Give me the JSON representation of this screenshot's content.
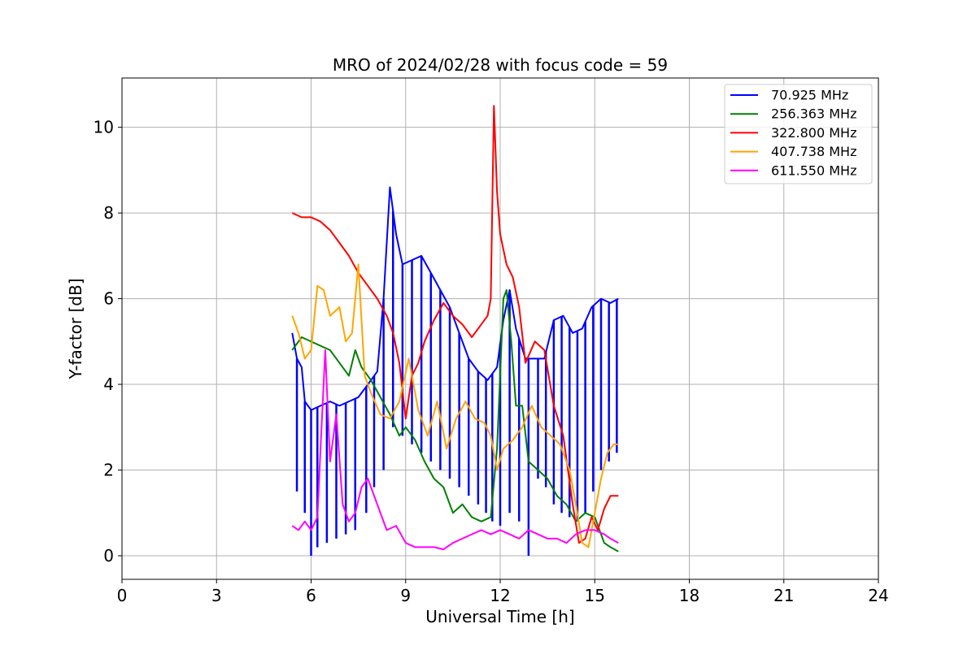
{
  "chart_data": {
    "type": "line",
    "title": "MRO of 2024/02/28 with focus code = 59",
    "xlabel": "Universal Time [h]",
    "ylabel": "Y-factor [dB]",
    "xlim": [
      0,
      24
    ],
    "ylim": [
      -0.55,
      11.15
    ],
    "xticks": [
      0,
      3,
      6,
      9,
      12,
      15,
      18,
      21,
      24
    ],
    "yticks": [
      0,
      2,
      4,
      6,
      8,
      10
    ],
    "grid": true,
    "legend_position": "top-right",
    "series": [
      {
        "name": "  70.925 MHz",
        "color": "#0000ff",
        "x": [
          5.4,
          5.55,
          5.7,
          5.8,
          6.0,
          6.3,
          6.6,
          6.9,
          7.2,
          7.5,
          7.8,
          8.1,
          8.3,
          8.5,
          8.7,
          8.9,
          9.2,
          9.5,
          9.8,
          10.1,
          10.4,
          10.7,
          11.0,
          11.3,
          11.6,
          11.9,
          12.1,
          12.3,
          12.5,
          12.8,
          13.1,
          13.4,
          13.7,
          14.0,
          14.3,
          14.6,
          14.9,
          15.2,
          15.5,
          15.75
        ],
        "y": [
          5.2,
          4.6,
          4.4,
          3.6,
          3.4,
          3.5,
          3.6,
          3.5,
          3.6,
          3.7,
          4.0,
          4.3,
          6.0,
          8.6,
          7.5,
          6.8,
          6.9,
          7.0,
          6.6,
          6.2,
          5.8,
          5.2,
          4.6,
          4.3,
          4.1,
          4.4,
          5.5,
          6.2,
          5.3,
          4.6,
          4.6,
          4.6,
          5.5,
          5.6,
          5.2,
          5.3,
          5.8,
          6.0,
          5.9,
          6.0
        ],
        "dips": [
          {
            "x": 5.55,
            "y": 1.5
          },
          {
            "x": 5.8,
            "y": 1.0
          },
          {
            "x": 6.0,
            "y": 0.0
          },
          {
            "x": 6.2,
            "y": 0.2
          },
          {
            "x": 6.5,
            "y": 0.3
          },
          {
            "x": 6.8,
            "y": 0.4
          },
          {
            "x": 7.1,
            "y": 0.5
          },
          {
            "x": 7.4,
            "y": 0.6
          },
          {
            "x": 7.75,
            "y": 1.0
          },
          {
            "x": 8.0,
            "y": 1.6
          },
          {
            "x": 8.3,
            "y": 2.0
          },
          {
            "x": 8.6,
            "y": 3.0
          },
          {
            "x": 8.9,
            "y": 2.8
          },
          {
            "x": 9.2,
            "y": 2.6
          },
          {
            "x": 9.5,
            "y": 2.4
          },
          {
            "x": 9.8,
            "y": 2.2
          },
          {
            "x": 10.1,
            "y": 2.0
          },
          {
            "x": 10.4,
            "y": 1.8
          },
          {
            "x": 10.7,
            "y": 1.6
          },
          {
            "x": 11.0,
            "y": 1.4
          },
          {
            "x": 11.3,
            "y": 1.2
          },
          {
            "x": 11.55,
            "y": 1.0
          },
          {
            "x": 11.75,
            "y": 0.8
          },
          {
            "x": 12.0,
            "y": 0.7
          },
          {
            "x": 12.3,
            "y": 1.0
          },
          {
            "x": 12.6,
            "y": 0.8
          },
          {
            "x": 12.9,
            "y": 0.0
          },
          {
            "x": 13.2,
            "y": 1.8
          },
          {
            "x": 13.45,
            "y": 1.6
          },
          {
            "x": 13.7,
            "y": 1.2
          },
          {
            "x": 13.95,
            "y": 1.0
          },
          {
            "x": 14.2,
            "y": 0.9
          },
          {
            "x": 14.45,
            "y": 0.8
          },
          {
            "x": 14.7,
            "y": 1.0
          },
          {
            "x": 14.95,
            "y": 1.5
          },
          {
            "x": 15.2,
            "y": 2.0
          },
          {
            "x": 15.45,
            "y": 2.2
          },
          {
            "x": 15.7,
            "y": 2.4
          }
        ]
      },
      {
        "name": "256.363 MHz",
        "color": "#008000",
        "x": [
          5.4,
          5.7,
          6.0,
          6.3,
          6.6,
          6.9,
          7.2,
          7.4,
          7.6,
          7.9,
          8.2,
          8.5,
          8.8,
          9.0,
          9.3,
          9.6,
          9.9,
          10.2,
          10.5,
          10.8,
          11.1,
          11.4,
          11.7,
          11.9,
          12.1,
          12.2,
          12.35,
          12.5,
          12.7,
          12.9,
          13.2,
          13.5,
          13.8,
          14.1,
          14.4,
          14.7,
          15.0,
          15.3,
          15.5,
          15.75
        ],
        "y": [
          4.8,
          5.1,
          5.0,
          4.9,
          4.8,
          4.5,
          4.2,
          4.8,
          4.4,
          4.1,
          3.7,
          3.3,
          2.8,
          3.0,
          2.7,
          2.2,
          1.8,
          1.6,
          1.0,
          1.2,
          0.9,
          0.8,
          0.9,
          2.5,
          6.0,
          6.2,
          5.0,
          3.5,
          3.5,
          2.2,
          2.0,
          1.8,
          1.4,
          1.2,
          0.8,
          1.0,
          0.9,
          0.3,
          0.2,
          0.1
        ]
      },
      {
        "name": "322.800 MHz",
        "color": "#ff0000",
        "x": [
          5.4,
          5.7,
          6.0,
          6.3,
          6.6,
          6.9,
          7.2,
          7.5,
          7.8,
          8.1,
          8.4,
          8.6,
          8.8,
          9.0,
          9.2,
          9.4,
          9.6,
          9.9,
          10.2,
          10.5,
          10.8,
          11.1,
          11.4,
          11.6,
          11.7,
          11.8,
          11.9,
          12.0,
          12.2,
          12.4,
          12.6,
          12.8,
          13.1,
          13.4,
          13.7,
          14.0,
          14.3,
          14.5,
          14.7,
          14.9,
          15.1,
          15.3,
          15.5,
          15.75
        ],
        "y": [
          8.0,
          7.9,
          7.9,
          7.8,
          7.6,
          7.3,
          7.0,
          6.6,
          6.3,
          6.0,
          5.6,
          5.2,
          4.5,
          3.2,
          4.2,
          4.5,
          5.0,
          5.5,
          5.9,
          5.6,
          5.4,
          5.1,
          5.4,
          5.6,
          6.0,
          10.5,
          8.5,
          7.5,
          6.8,
          6.5,
          5.8,
          4.5,
          5.0,
          4.8,
          3.5,
          2.8,
          1.2,
          0.3,
          0.4,
          0.9,
          0.6,
          1.1,
          1.4,
          1.4
        ]
      },
      {
        "name": "407.738 MHz",
        "color": "#ffa500",
        "x": [
          5.4,
          5.6,
          5.8,
          6.0,
          6.2,
          6.4,
          6.6,
          6.9,
          7.1,
          7.3,
          7.5,
          7.7,
          7.9,
          8.2,
          8.5,
          8.8,
          9.1,
          9.4,
          9.7,
          10.0,
          10.3,
          10.6,
          10.9,
          11.2,
          11.5,
          11.7,
          11.9,
          12.1,
          12.4,
          12.7,
          13.0,
          13.3,
          13.6,
          13.9,
          14.2,
          14.4,
          14.6,
          14.8,
          15.0,
          15.2,
          15.4,
          15.6,
          15.75
        ],
        "y": [
          5.6,
          5.2,
          4.6,
          4.8,
          6.3,
          6.2,
          5.6,
          5.8,
          5.0,
          5.2,
          6.8,
          4.2,
          3.8,
          3.3,
          3.2,
          3.6,
          4.6,
          3.4,
          2.8,
          3.6,
          2.5,
          3.2,
          3.6,
          3.2,
          3.1,
          2.8,
          2.0,
          2.5,
          2.7,
          3.0,
          3.5,
          3.0,
          2.8,
          2.6,
          2.0,
          1.2,
          0.3,
          0.2,
          1.0,
          1.8,
          2.4,
          2.6,
          2.6
        ]
      },
      {
        "name": "611.550 MHz",
        "color": "#ff00ff",
        "x": [
          5.4,
          5.6,
          5.8,
          6.0,
          6.2,
          6.3,
          6.45,
          6.6,
          6.8,
          7.0,
          7.2,
          7.4,
          7.6,
          7.8,
          8.0,
          8.2,
          8.4,
          8.7,
          9.0,
          9.3,
          9.6,
          9.9,
          10.2,
          10.5,
          10.8,
          11.1,
          11.4,
          11.7,
          12.0,
          12.3,
          12.6,
          12.9,
          13.2,
          13.5,
          13.8,
          14.1,
          14.4,
          14.7,
          15.0,
          15.3,
          15.5,
          15.75
        ],
        "y": [
          0.7,
          0.6,
          0.8,
          0.6,
          0.9,
          2.5,
          4.8,
          2.2,
          3.3,
          1.2,
          0.8,
          1.0,
          1.6,
          1.8,
          1.4,
          1.0,
          0.6,
          0.7,
          0.3,
          0.2,
          0.2,
          0.2,
          0.15,
          0.3,
          0.4,
          0.5,
          0.6,
          0.5,
          0.6,
          0.5,
          0.4,
          0.6,
          0.5,
          0.4,
          0.4,
          0.3,
          0.5,
          0.6,
          0.6,
          0.5,
          0.4,
          0.3
        ]
      }
    ]
  }
}
